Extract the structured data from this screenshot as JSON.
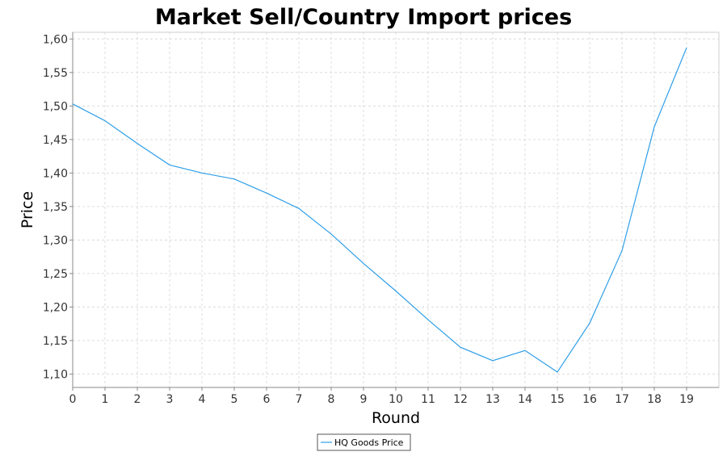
{
  "chart_data": {
    "type": "line",
    "title": "Market Sell/Country Import prices",
    "xlabel": "Round",
    "ylabel": "Price",
    "xlim": [
      0,
      20
    ],
    "ylim": [
      1.08,
      1.61
    ],
    "x_ticks": [
      "0",
      "1",
      "2",
      "3",
      "4",
      "5",
      "6",
      "7",
      "8",
      "9",
      "10",
      "11",
      "12",
      "13",
      "14",
      "15",
      "16",
      "17",
      "18",
      "19"
    ],
    "y_ticks": [
      "1,10",
      "1,15",
      "1,20",
      "1,25",
      "1,30",
      "1,35",
      "1,40",
      "1,45",
      "1,50",
      "1,55",
      "1,60"
    ],
    "grid": true,
    "legend_position": "bottom-center",
    "x": [
      0,
      1,
      2,
      3,
      4,
      5,
      6,
      7,
      8,
      9,
      10,
      11,
      12,
      13,
      14,
      15,
      16,
      17,
      18,
      19
    ],
    "series": [
      {
        "name": "HQ Goods Price",
        "color": "#2e9fe8",
        "values": [
          1.503,
          1.478,
          1.444,
          1.412,
          1.4,
          1.391,
          1.37,
          1.347,
          1.309,
          1.265,
          1.224,
          1.181,
          1.14,
          1.12,
          1.135,
          1.103,
          1.176,
          1.284,
          1.469,
          1.587
        ]
      }
    ]
  }
}
